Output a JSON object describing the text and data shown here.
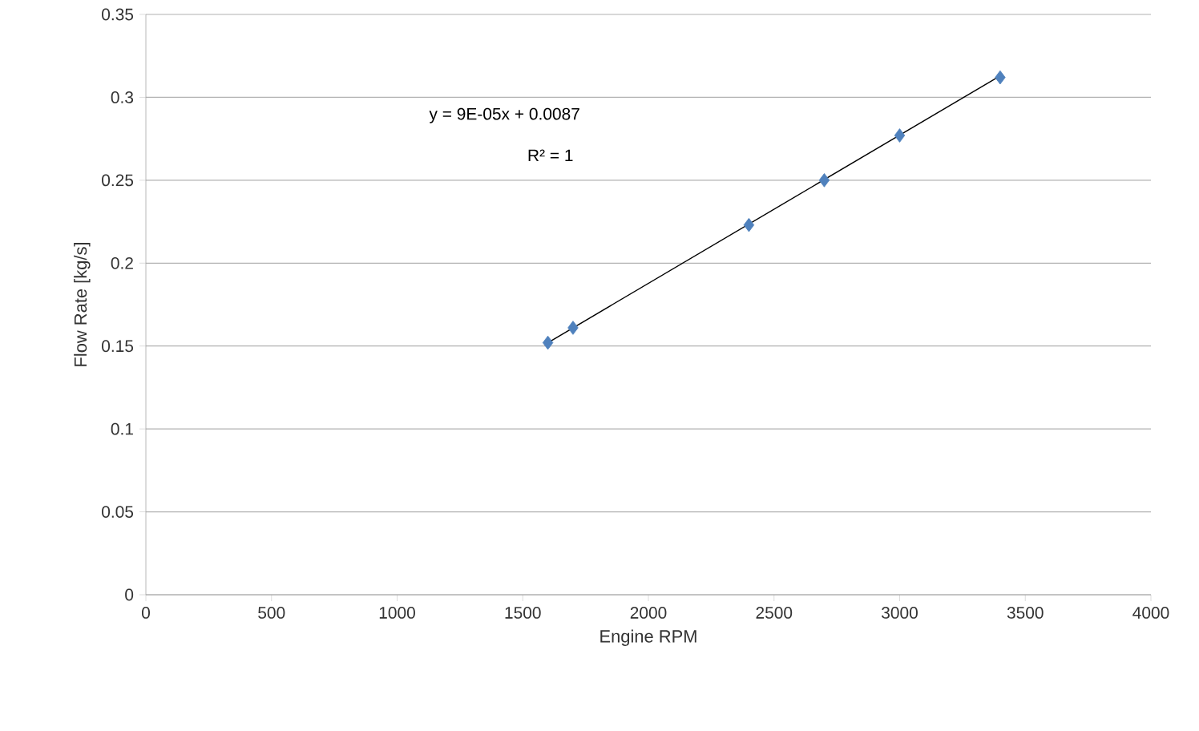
{
  "chart_data": {
    "type": "scatter",
    "xlabel": "Engine RPM",
    "ylabel": "Flow Rate [kg/s]",
    "annotations": [
      "y = 9E-05x + 0.0087",
      "R² = 1"
    ],
    "xlim": [
      0,
      4000
    ],
    "xticks": [
      0,
      500,
      1000,
      1500,
      2000,
      2500,
      3000,
      3500,
      4000
    ],
    "ylim": [
      0,
      0.35
    ],
    "yticks": [
      0,
      0.05,
      0.1,
      0.15,
      0.2,
      0.25,
      0.3,
      0.35
    ],
    "grid": "y",
    "series": [
      {
        "marker": "diamond",
        "color": "#4f81bd",
        "x": [
          1600,
          1700,
          2400,
          2700,
          3000,
          3400
        ],
        "values": [
          0.152,
          0.161,
          0.223,
          0.25,
          0.277,
          0.312
        ]
      },
      {
        "type": "line",
        "marker": "none",
        "color": "#000000",
        "line_style": "solid",
        "x": [
          1600,
          3400
        ],
        "values": [
          0.152,
          0.313
        ]
      }
    ]
  }
}
